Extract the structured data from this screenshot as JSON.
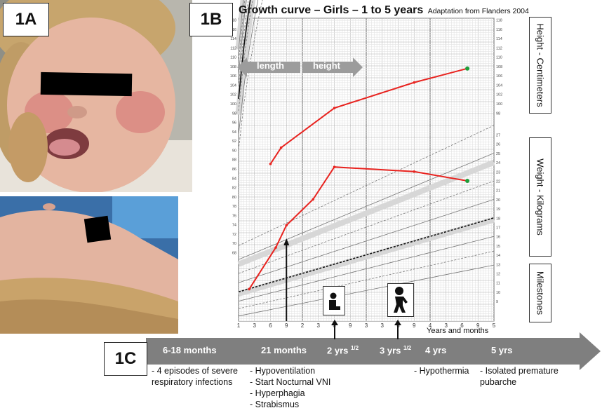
{
  "panels": {
    "a": "1A",
    "b": "1B",
    "c": "1C"
  },
  "chart": {
    "title": "Growth curve – Girls – 1 to 5 years",
    "subtitle": "Adaptation from Flanders 2004",
    "arrow_length": "length",
    "arrow_height": "height",
    "side_height": "Height - Centimeters",
    "side_weight": "Weight - Kilograms",
    "side_milestones": "Milestones",
    "x_axis_caption": "Years and months",
    "x_ticks": [
      "1",
      "3",
      "6",
      "9",
      "2",
      "3",
      "6",
      "9",
      "3",
      "3",
      "6",
      "9",
      "4",
      "3",
      "6",
      "9",
      "5"
    ],
    "height_ticks": [
      "98",
      "100",
      "102",
      "104",
      "106",
      "108",
      "110",
      "112",
      "114",
      "116",
      "118"
    ],
    "weight_ticks": [
      "9",
      "10",
      "11",
      "12",
      "13",
      "14",
      "15",
      "16",
      "17",
      "18",
      "19",
      "20",
      "21",
      "22",
      "23",
      "24",
      "25",
      "26",
      "27"
    ],
    "left_ticks": [
      "68",
      "70",
      "72",
      "74",
      "76",
      "78",
      "80",
      "82",
      "84",
      "86",
      "88",
      "90",
      "92",
      "94",
      "96",
      "98",
      "100",
      "102",
      "104",
      "106",
      "108",
      "110",
      "112",
      "114",
      "116",
      "118"
    ]
  },
  "chart_data": {
    "type": "line",
    "title": "Growth curve – Girls – 1 to 5 years",
    "subtitle": "Adaptation from Flanders 2004",
    "xlabel": "Years and months",
    "x_unit": "age in months",
    "xlim": [
      12,
      60
    ],
    "series": [
      {
        "name": "Height - Centimeters",
        "x": [
          18,
          20,
          30,
          45,
          55
        ],
        "y": [
          87.0,
          90.5,
          99.0,
          104.5,
          107.5
        ]
      },
      {
        "name": "Weight - Kilograms",
        "x": [
          14,
          19,
          21,
          26,
          30,
          45,
          55
        ],
        "y": [
          10.3,
          14.8,
          17.2,
          20.0,
          23.5,
          23.0,
          22.0
        ]
      }
    ],
    "ylim_height": [
      68,
      118
    ],
    "ylim_weight": [
      7,
      27
    ]
  },
  "milestone_icons": [
    "sitting-child-icon",
    "walking-child-icon"
  ],
  "timeline": {
    "stages": [
      {
        "label": "6-18 months",
        "sup": "",
        "events": [
          "- 4 episodes of severe",
          "respiratory infections"
        ]
      },
      {
        "label": "21 months",
        "sup": "",
        "events": [
          "- Hypoventilation",
          "- Start Nocturnal VNI",
          "- Hyperphagia",
          "- Strabismus"
        ]
      },
      {
        "label": "2 yrs ",
        "sup": "1/2",
        "events": []
      },
      {
        "label": "3 yrs ",
        "sup": "1/2",
        "events": []
      },
      {
        "label": "4 yrs",
        "sup": "",
        "events": [
          "- Hypothermia"
        ]
      },
      {
        "label": "5 yrs",
        "sup": "",
        "events": [
          "- Isolated premature",
          "pubarche"
        ]
      }
    ]
  },
  "colors": {
    "growth_line": "#e8231f",
    "endpoint": "#1f9d3a",
    "timeline_arrow": "#7f7f7f",
    "percentile_band": "#d7d7d7",
    "skin": "#e7b7a0",
    "hair": "#c9a36a"
  }
}
